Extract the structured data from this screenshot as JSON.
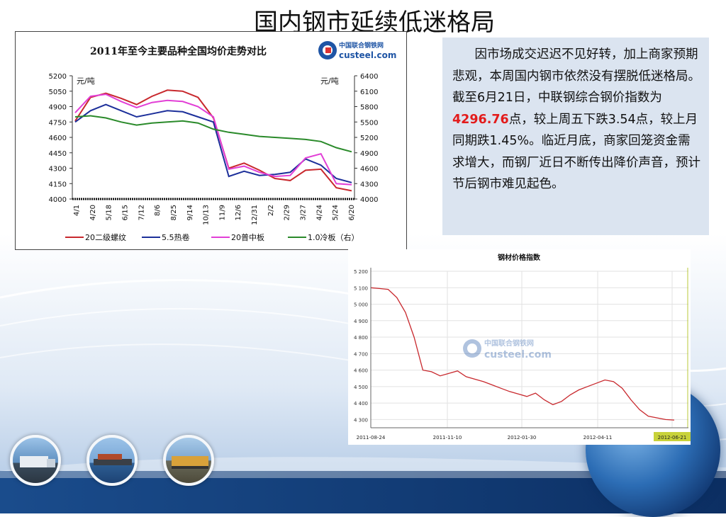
{
  "slide_title": "国内钢市延续低迷格局",
  "colors": {
    "red": "#c8282d",
    "blue": "#1c2f9a",
    "magenta": "#e23fd6",
    "green": "#2a8a2a",
    "highlight": "#e31b1b",
    "bg_blue": "#1a4c8c"
  },
  "text_box": {
    "p1": "因市场成交迟迟不见好转，加上商家预期悲观，本周国内钢市依然没有摆脱低迷格局。截至6月21日，中联钢综合钢价指数为",
    "index_value": "4296.76",
    "p2": "点，较上周五下跌3.54点，较上月同期跌1.45%。临近月底，商家回笼资金需求增大，而钢厂近日不断传出降价声音，预计节后钢市难见起色。"
  },
  "chart1": {
    "title": "2011年至今主要品种全国均价走势对比",
    "logo_top": "中国联合钢铁网",
    "logo_bottom": "custeel.com",
    "unit_left": "元/吨",
    "unit_right": "元/吨",
    "legend": [
      "20二级螺纹",
      "5.5热卷",
      "20普中板",
      "1.0冷板（右）"
    ]
  },
  "chart2": {
    "title": "钢材价格指数",
    "watermark_top": "中国联合钢铁网",
    "watermark_bottom": "custeel.com"
  },
  "chart_data": [
    {
      "type": "line",
      "title": "2011年至今主要品种全国均价走势对比",
      "ylabel": "元/吨",
      "y2label": "元/吨",
      "ylim": [
        4000,
        5200
      ],
      "y2lim": [
        4000,
        6400
      ],
      "yticks": [
        4000,
        4150,
        4300,
        4450,
        4600,
        4750,
        4900,
        5050,
        5200
      ],
      "y2ticks": [
        4000,
        4300,
        4600,
        4900,
        5200,
        5500,
        5800,
        6100,
        6400
      ],
      "x_ticks": [
        "4/1",
        "4/20",
        "5/18",
        "6/15",
        "7/12",
        "8/6",
        "8/25",
        "9/14",
        "10/13",
        "11/9",
        "12/6",
        "12/31",
        "2/2",
        "2/29",
        "3/27",
        "4/24",
        "5/24",
        "6/20"
      ],
      "series": [
        {
          "name": "20二级螺纹",
          "axis": "left",
          "color": "#c8282d",
          "values": [
            4760,
            4990,
            5030,
            4980,
            4920,
            5000,
            5060,
            5050,
            4990,
            4790,
            4300,
            4350,
            4280,
            4200,
            4180,
            4280,
            4290,
            4110,
            4080
          ]
        },
        {
          "name": "5.5热卷",
          "axis": "left",
          "color": "#1c2f9a",
          "values": [
            4750,
            4860,
            4920,
            4860,
            4800,
            4830,
            4860,
            4850,
            4800,
            4750,
            4220,
            4270,
            4230,
            4240,
            4260,
            4390,
            4330,
            4200,
            4160
          ]
        },
        {
          "name": "20普中板",
          "axis": "left",
          "color": "#e23fd6",
          "values": [
            4840,
            5000,
            5020,
            4950,
            4890,
            4940,
            4960,
            4950,
            4900,
            4800,
            4290,
            4320,
            4260,
            4220,
            4230,
            4400,
            4440,
            4150,
            4140
          ]
        },
        {
          "name": "1.0冷板（右）",
          "axis": "right",
          "color": "#2a8a2a",
          "values": [
            5600,
            5620,
            5580,
            5500,
            5440,
            5480,
            5500,
            5520,
            5480,
            5360,
            5300,
            5260,
            5220,
            5200,
            5180,
            5160,
            5120,
            5000,
            4920
          ]
        }
      ],
      "legend_position": "bottom",
      "grid": false
    },
    {
      "type": "line",
      "title": "钢材价格指数",
      "x_ticks": [
        "2011-08-24",
        "2011-11-10",
        "2012-01-30",
        "2012-04-11",
        "2012-06-21"
      ],
      "ylim": [
        4250,
        5200
      ],
      "yticks": [
        4300,
        4400,
        4500,
        4600,
        4700,
        4800,
        4900,
        5000,
        5100,
        5200
      ],
      "ytick_labels": [
        "4 300",
        "4 400",
        "4 500",
        "4 600",
        "4 700",
        "4 800",
        "4 900",
        "5 000",
        "5 100",
        "5 200"
      ],
      "values": [
        5100,
        5095,
        5090,
        5040,
        4950,
        4800,
        4600,
        4590,
        4565,
        4580,
        4595,
        4560,
        4545,
        4530,
        4510,
        4490,
        4470,
        4455,
        4440,
        4460,
        4420,
        4390,
        4410,
        4450,
        4480,
        4500,
        4520,
        4540,
        4530,
        4490,
        4420,
        4360,
        4320,
        4310,
        4300,
        4297
      ],
      "grid": true,
      "line_color": "#c8282d"
    }
  ]
}
